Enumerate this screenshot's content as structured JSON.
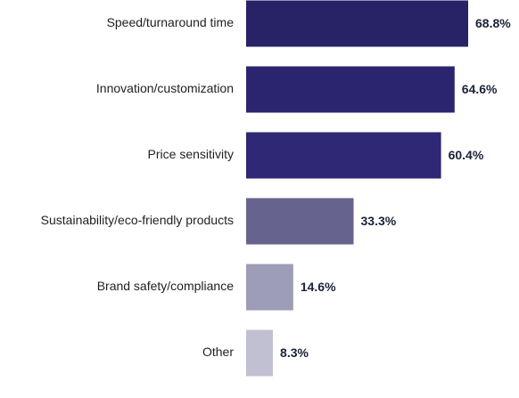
{
  "chart_data": {
    "type": "bar",
    "orientation": "horizontal",
    "categories": [
      "Speed/turnaround time",
      "Innovation/customization",
      "Price sensitivity",
      "Sustainability/eco-friendly products",
      "Brand safety/compliance",
      "Other"
    ],
    "values": [
      68.8,
      64.6,
      60.4,
      33.3,
      14.6,
      8.3
    ],
    "value_labels": [
      "68.8%",
      "64.6%",
      "60.4%",
      "33.3%",
      "14.6%",
      "8.3%"
    ],
    "bar_colors": [
      "#282266",
      "#2b2570",
      "#2e2875",
      "#66648f",
      "#9e9db8",
      "#c1c0d2"
    ],
    "title": "",
    "xlabel": "",
    "ylabel": "",
    "xlim": [
      0,
      68.8
    ],
    "grid": false,
    "legend": "none"
  }
}
